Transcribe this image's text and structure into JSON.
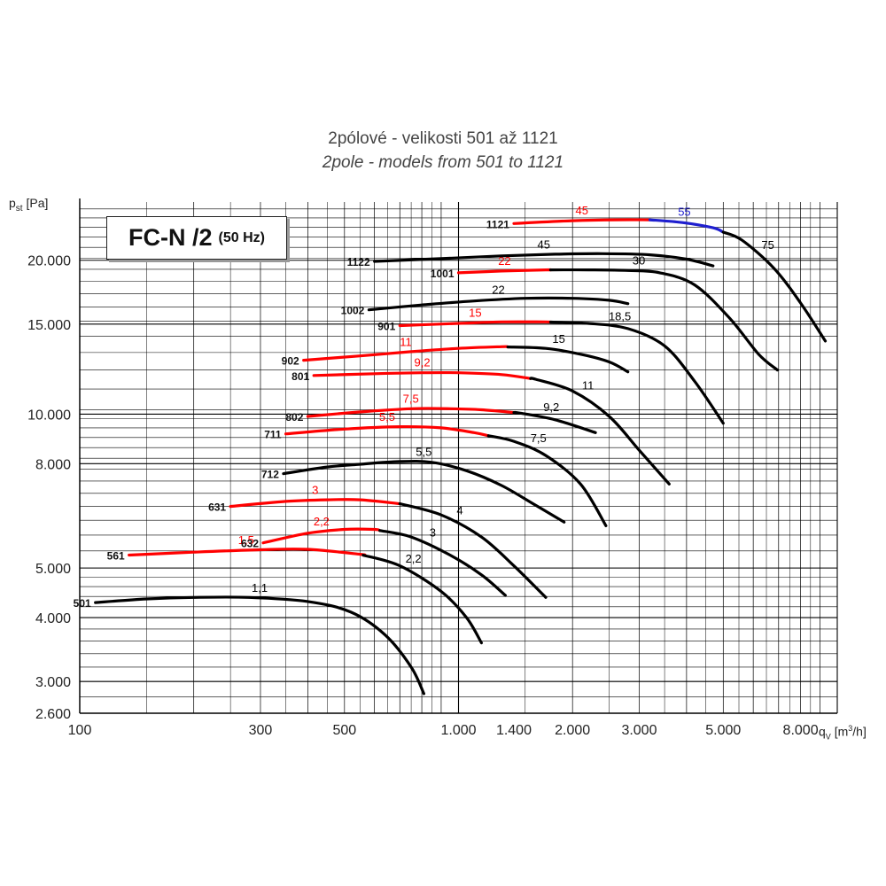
{
  "title_cz": "2pólové - velikosti 501 až 1121",
  "title_en": "2pole - models from 501 to 1121",
  "ylabel": {
    "main": "p",
    "sub": "st",
    "unit": " [Pa]"
  },
  "xlabel": {
    "main": "q",
    "sub": "V",
    "unit_pre": " [m",
    "unit_sup": "3",
    "unit_post": "/h]"
  },
  "model_box": {
    "main": "FC-N /2",
    "sub": "(50 Hz)"
  },
  "colors": {
    "standard": "#000000",
    "highlight": "#ff0000",
    "blue": "#1f1fcf",
    "grid": "#000000"
  },
  "chart_data": {
    "type": "line",
    "x_scale": "log",
    "y_scale": "log",
    "xlim": [
      100,
      10000
    ],
    "ylim": [
      2600,
      26000
    ],
    "grid": true,
    "x_ticks": [
      {
        "v": 100,
        "label": "100"
      },
      {
        "v": 300,
        "label": "300"
      },
      {
        "v": 500,
        "label": "500"
      },
      {
        "v": 1000,
        "label": "1.000"
      },
      {
        "v": 1400,
        "label": "1.400"
      },
      {
        "v": 2000,
        "label": "2.000"
      },
      {
        "v": 3000,
        "label": "3.000"
      },
      {
        "v": 5000,
        "label": "5.000"
      },
      {
        "v": 8000,
        "label": "8.000"
      }
    ],
    "y_ticks": [
      {
        "v": 2600,
        "label": "2.600"
      },
      {
        "v": 3000,
        "label": "3.000"
      },
      {
        "v": 4000,
        "label": "4.000"
      },
      {
        "v": 5000,
        "label": "5.000"
      },
      {
        "v": 8000,
        "label": "8.000"
      },
      {
        "v": 10000,
        "label": "10.000"
      },
      {
        "v": 15000,
        "label": "15.000"
      },
      {
        "v": 20000,
        "label": "20.000"
      }
    ],
    "series": [
      {
        "name": "501",
        "points": [
          [
            110,
            4280
          ],
          [
            150,
            4350
          ],
          [
            200,
            4380
          ],
          [
            280,
            4380
          ],
          [
            400,
            4300
          ],
          [
            520,
            4100
          ],
          [
            640,
            3700
          ],
          [
            750,
            3200
          ],
          [
            810,
            2840
          ]
        ],
        "segments": [
          {
            "from": 110,
            "to": 810,
            "color": "standard"
          }
        ],
        "powers": [
          {
            "label": "1,1",
            "color": "standard"
          }
        ]
      },
      {
        "name": "561",
        "points": [
          [
            135,
            5300
          ],
          [
            200,
            5370
          ],
          [
            300,
            5430
          ],
          [
            400,
            5440
          ],
          [
            550,
            5320
          ],
          [
            700,
            5050
          ],
          [
            900,
            4500
          ],
          [
            1050,
            4000
          ],
          [
            1150,
            3570
          ]
        ],
        "segments": [
          {
            "from": 135,
            "to": 560,
            "color": "highlight"
          },
          {
            "from": 560,
            "to": 1150,
            "color": "standard"
          }
        ],
        "powers": [
          {
            "label": "1,5",
            "color": "highlight"
          },
          {
            "label": "2,2",
            "color": "standard"
          }
        ]
      },
      {
        "name": "632",
        "points": [
          [
            305,
            5600
          ],
          [
            400,
            5850
          ],
          [
            500,
            5950
          ],
          [
            600,
            5950
          ],
          [
            750,
            5750
          ],
          [
            950,
            5300
          ],
          [
            1150,
            4850
          ],
          [
            1330,
            4420
          ]
        ],
        "segments": [
          {
            "from": 305,
            "to": 620,
            "color": "highlight"
          },
          {
            "from": 620,
            "to": 1330,
            "color": "standard"
          }
        ],
        "powers": [
          {
            "label": "2,2",
            "color": "highlight"
          },
          {
            "label": "3",
            "color": "standard"
          }
        ]
      },
      {
        "name": "631",
        "points": [
          [
            250,
            6600
          ],
          [
            350,
            6750
          ],
          [
            450,
            6800
          ],
          [
            550,
            6800
          ],
          [
            700,
            6680
          ],
          [
            900,
            6350
          ],
          [
            1150,
            5750
          ],
          [
            1400,
            5050
          ],
          [
            1700,
            4380
          ]
        ],
        "segments": [
          {
            "from": 250,
            "to": 700,
            "color": "highlight"
          },
          {
            "from": 700,
            "to": 1700,
            "color": "standard"
          }
        ],
        "powers": [
          {
            "label": "3",
            "color": "highlight"
          },
          {
            "label": "4",
            "color": "standard"
          }
        ]
      },
      {
        "name": "712",
        "points": [
          [
            345,
            7650
          ],
          [
            450,
            7880
          ],
          [
            550,
            7980
          ],
          [
            700,
            8080
          ],
          [
            850,
            8050
          ],
          [
            1050,
            7750
          ],
          [
            1300,
            7250
          ],
          [
            1600,
            6630
          ],
          [
            1900,
            6150
          ]
        ],
        "segments": [
          {
            "from": 345,
            "to": 1900,
            "color": "standard"
          }
        ],
        "powers": [
          {
            "label": "5,5",
            "color": "standard"
          }
        ]
      },
      {
        "name": "711",
        "points": [
          [
            350,
            9150
          ],
          [
            500,
            9350
          ],
          [
            700,
            9450
          ],
          [
            900,
            9400
          ],
          [
            1100,
            9200
          ],
          [
            1400,
            8850
          ],
          [
            1700,
            8300
          ],
          [
            2100,
            7300
          ],
          [
            2450,
            6050
          ]
        ],
        "segments": [
          {
            "from": 350,
            "to": 1200,
            "color": "highlight"
          },
          {
            "from": 1200,
            "to": 2450,
            "color": "standard"
          }
        ],
        "powers": [
          {
            "label": "5,5",
            "color": "highlight"
          },
          {
            "label": "7,5",
            "color": "standard"
          }
        ]
      },
      {
        "name": "802",
        "points": [
          [
            400,
            9900
          ],
          [
            550,
            10100
          ],
          [
            750,
            10250
          ],
          [
            950,
            10250
          ],
          [
            1150,
            10200
          ],
          [
            1450,
            10050
          ],
          [
            1800,
            9750
          ],
          [
            2300,
            9200
          ]
        ],
        "segments": [
          {
            "from": 400,
            "to": 1400,
            "color": "highlight"
          },
          {
            "from": 1400,
            "to": 2300,
            "color": "standard"
          }
        ],
        "powers": [
          {
            "label": "7,5",
            "color": "highlight"
          },
          {
            "label": "9,2",
            "color": "standard"
          }
        ]
      },
      {
        "name": "801",
        "points": [
          [
            415,
            11900
          ],
          [
            600,
            12000
          ],
          [
            800,
            12050
          ],
          [
            1000,
            12050
          ],
          [
            1300,
            11950
          ],
          [
            1600,
            11700
          ],
          [
            2000,
            11100
          ],
          [
            2500,
            9900
          ],
          [
            3000,
            8500
          ],
          [
            3600,
            7300
          ]
        ],
        "segments": [
          {
            "from": 415,
            "to": 1550,
            "color": "highlight"
          },
          {
            "from": 1550,
            "to": 3600,
            "color": "standard"
          }
        ],
        "powers": [
          {
            "label": "9,2",
            "color": "highlight"
          },
          {
            "label": "11",
            "color": "standard"
          }
        ]
      },
      {
        "name": "902",
        "points": [
          [
            390,
            12750
          ],
          [
            550,
            13000
          ],
          [
            750,
            13250
          ],
          [
            1000,
            13450
          ],
          [
            1300,
            13550
          ],
          [
            1700,
            13450
          ],
          [
            2100,
            13100
          ],
          [
            2500,
            12650
          ],
          [
            2800,
            12100
          ]
        ],
        "segments": [
          {
            "from": 390,
            "to": 1350,
            "color": "highlight"
          },
          {
            "from": 1350,
            "to": 2800,
            "color": "standard"
          }
        ],
        "powers": [
          {
            "label": "11",
            "color": "highlight"
          },
          {
            "label": "15",
            "color": "standard"
          }
        ]
      },
      {
        "name": "901",
        "points": [
          [
            700,
            14900
          ],
          [
            1000,
            15050
          ],
          [
            1300,
            15150
          ],
          [
            1700,
            15150
          ],
          [
            2200,
            15050
          ],
          [
            2800,
            14700
          ],
          [
            3500,
            13600
          ],
          [
            4200,
            11600
          ],
          [
            5000,
            9600
          ]
        ],
        "segments": [
          {
            "from": 700,
            "to": 1750,
            "color": "highlight"
          },
          {
            "from": 1750,
            "to": 5000,
            "color": "standard"
          }
        ],
        "powers": [
          {
            "label": "15",
            "color": "highlight"
          },
          {
            "label": "18,5",
            "color": "standard"
          }
        ]
      },
      {
        "name": "1002",
        "points": [
          [
            580,
            16000
          ],
          [
            800,
            16350
          ],
          [
            1100,
            16650
          ],
          [
            1500,
            16850
          ],
          [
            2000,
            16850
          ],
          [
            2500,
            16700
          ],
          [
            2800,
            16450
          ]
        ],
        "segments": [
          {
            "from": 580,
            "to": 2800,
            "color": "standard"
          }
        ],
        "powers": [
          {
            "label": "22",
            "color": "standard"
          }
        ]
      },
      {
        "name": "1001",
        "points": [
          [
            1000,
            18900
          ],
          [
            1300,
            19050
          ],
          [
            1700,
            19150
          ],
          [
            2200,
            19150
          ],
          [
            2800,
            19100
          ],
          [
            3400,
            18900
          ],
          [
            4200,
            17900
          ],
          [
            5200,
            15400
          ],
          [
            6200,
            13100
          ],
          [
            6950,
            12200
          ]
        ],
        "segments": [
          {
            "from": 1000,
            "to": 1750,
            "color": "highlight"
          },
          {
            "from": 1750,
            "to": 6950,
            "color": "standard"
          }
        ],
        "powers": [
          {
            "label": "22",
            "color": "highlight"
          },
          {
            "label": "30",
            "color": "standard"
          }
        ]
      },
      {
        "name": "1122",
        "points": [
          [
            600,
            19900
          ],
          [
            900,
            20150
          ],
          [
            1300,
            20400
          ],
          [
            1800,
            20550
          ],
          [
            2400,
            20600
          ],
          [
            3200,
            20500
          ],
          [
            4000,
            20100
          ],
          [
            4700,
            19500
          ]
        ],
        "segments": [
          {
            "from": 600,
            "to": 4700,
            "color": "standard"
          }
        ],
        "powers": [
          {
            "label": "45",
            "color": "standard"
          }
        ]
      },
      {
        "name": "1121",
        "points": [
          [
            1400,
            23600
          ],
          [
            2000,
            23900
          ],
          [
            2600,
            24000
          ],
          [
            3200,
            24000
          ],
          [
            3900,
            23700
          ],
          [
            4700,
            23150
          ],
          [
            5600,
            21900
          ],
          [
            6800,
            19300
          ],
          [
            8000,
            16500
          ],
          [
            9300,
            13900
          ]
        ],
        "segments": [
          {
            "from": 1400,
            "to": 3200,
            "color": "highlight"
          },
          {
            "from": 3200,
            "to": 5000,
            "color": "blue"
          },
          {
            "from": 5000,
            "to": 9300,
            "color": "standard"
          }
        ],
        "powers": [
          {
            "label": "45",
            "color": "highlight"
          },
          {
            "label": "55",
            "color": "blue"
          },
          {
            "label": "75",
            "color": "standard"
          }
        ]
      }
    ]
  }
}
